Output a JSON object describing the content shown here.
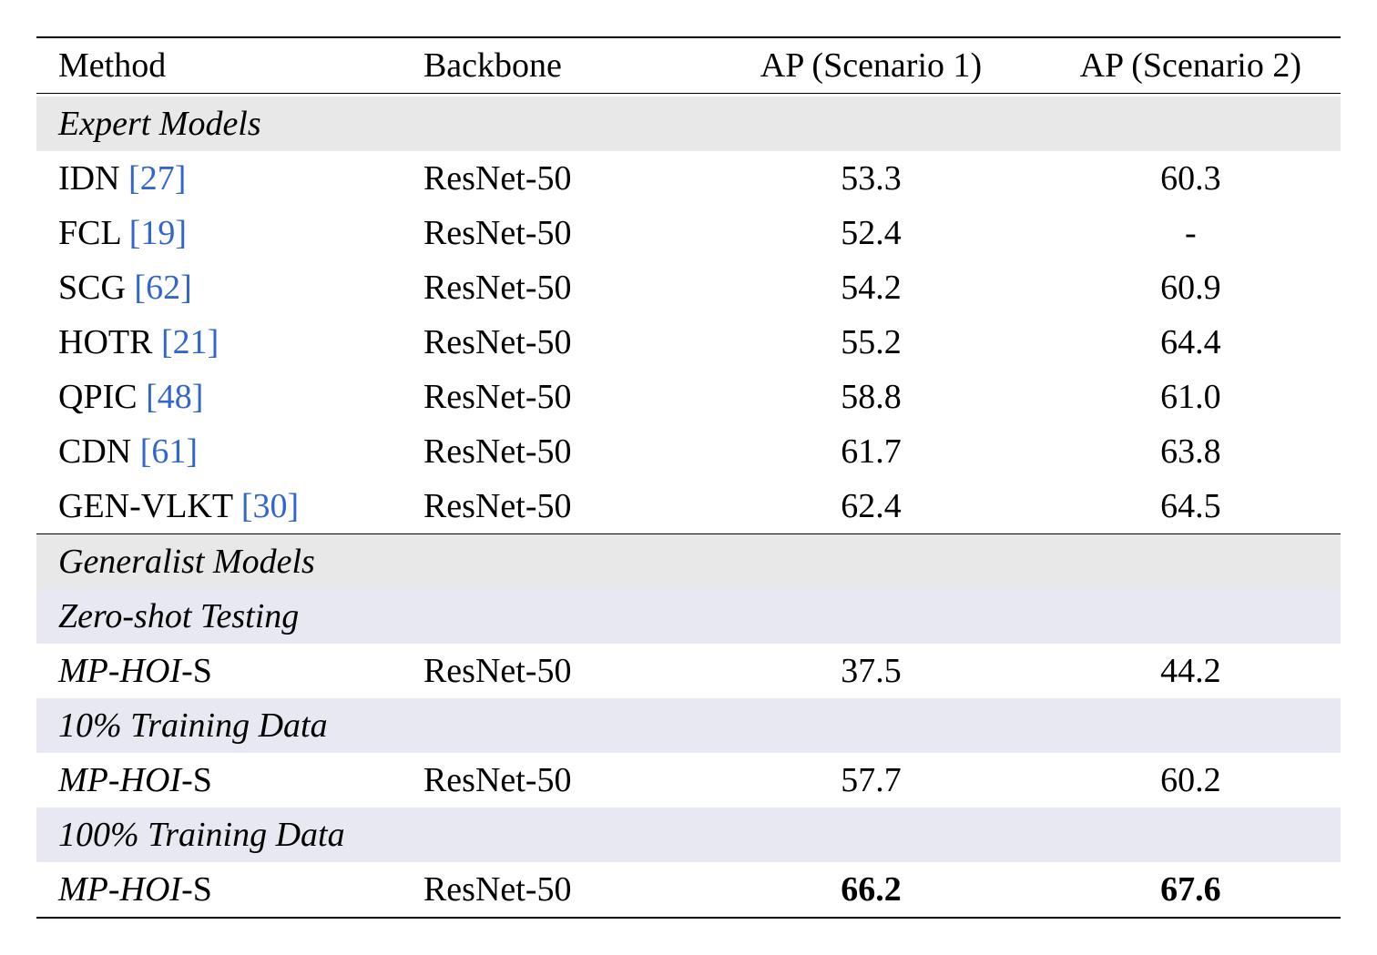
{
  "table": {
    "columns": [
      "Method",
      "Backbone",
      "AP (Scenario 1)",
      "AP (Scenario 2)"
    ],
    "column_widths": [
      "28%",
      "23%",
      "26%",
      "23%"
    ],
    "column_alignment": [
      "left",
      "left",
      "center",
      "center"
    ],
    "sections": [
      {
        "header": "Expert Models",
        "header_bg": "#e8e8e8",
        "rows": [
          {
            "method": "IDN",
            "cite": "[27]",
            "backbone": "ResNet-50",
            "ap1": "53.3",
            "ap2": "60.3",
            "bold": false
          },
          {
            "method": "FCL",
            "cite": "[19]",
            "backbone": "ResNet-50",
            "ap1": "52.4",
            "ap2": "-",
            "bold": false
          },
          {
            "method": "SCG",
            "cite": "[62]",
            "backbone": "ResNet-50",
            "ap1": "54.2",
            "ap2": "60.9",
            "bold": false
          },
          {
            "method": "HOTR",
            "cite": "[21]",
            "backbone": "ResNet-50",
            "ap1": "55.2",
            "ap2": "64.4",
            "bold": false
          },
          {
            "method": "QPIC",
            "cite": "[48]",
            "backbone": "ResNet-50",
            "ap1": "58.8",
            "ap2": "61.0",
            "bold": false
          },
          {
            "method": "CDN",
            "cite": "[61]",
            "backbone": "ResNet-50",
            "ap1": "61.7",
            "ap2": "63.8",
            "bold": false
          },
          {
            "method": "GEN-VLKT",
            "cite": "[30]",
            "backbone": "ResNet-50",
            "ap1": "62.4",
            "ap2": "64.5",
            "bold": false
          }
        ]
      },
      {
        "header": "Generalist Models",
        "header_bg": "#e8e8e8",
        "subsections": [
          {
            "header": "Zero-shot Testing",
            "header_bg": "#e8e8f2",
            "rows": [
              {
                "method_prefix": "MP-HOI",
                "method_suffix": "-S",
                "backbone": "ResNet-50",
                "ap1": "37.5",
                "ap2": "44.2",
                "bold": false,
                "italic": true
              }
            ]
          },
          {
            "header": "10% Training Data",
            "header_bg": "#e8e8f2",
            "rows": [
              {
                "method_prefix": "MP-HOI",
                "method_suffix": "-S",
                "backbone": "ResNet-50",
                "ap1": "57.7",
                "ap2": "60.2",
                "bold": false,
                "italic": true
              }
            ]
          },
          {
            "header": "100% Training Data",
            "header_bg": "#e8e8f2",
            "rows": [
              {
                "method_prefix": "MP-HOI",
                "method_suffix": "-S",
                "backbone": "ResNet-50",
                "ap1": "66.2",
                "ap2": "67.6",
                "bold": true,
                "italic": true
              }
            ]
          }
        ]
      }
    ],
    "colors": {
      "text": "#000000",
      "cite": "#3366cc",
      "section_bg": "#e8e8e8",
      "subsection_bg": "#e8e8f2",
      "border": "#000000",
      "background": "#ffffff"
    },
    "typography": {
      "font_family": "Georgia, Times New Roman, serif",
      "base_fontsize": 38
    }
  }
}
